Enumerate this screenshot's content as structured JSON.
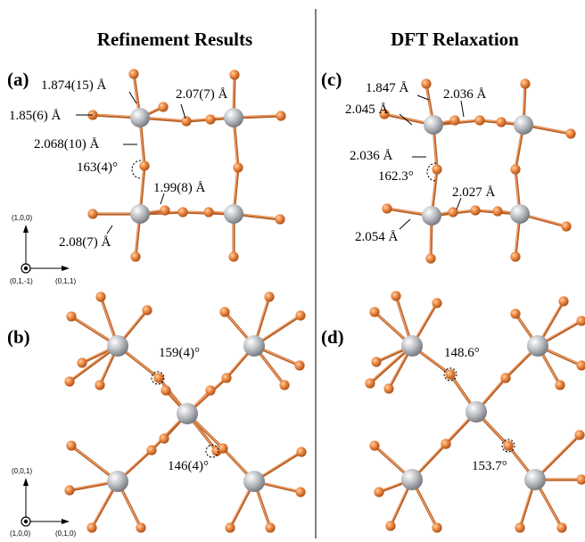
{
  "titles": {
    "left": "Refinement Results",
    "right": "DFT Relaxation"
  },
  "panels": {
    "a": {
      "label": "(a)",
      "annotations": [
        "1.874(15) Å",
        "2.07(7) Å",
        "1.85(6) Å",
        "2.068(10) Å",
        "163(4)°",
        "1.99(8) Å",
        "2.08(7) Å"
      ]
    },
    "b": {
      "label": "(b)",
      "annotations": [
        "159(4)°",
        "146(4)°"
      ]
    },
    "c": {
      "label": "(c)",
      "annotations": [
        "1.847 Å",
        "2.036 Å",
        "2.045 Å",
        "2.036 Å",
        "162.3°",
        "2.027 Å",
        "2.054 Å"
      ]
    },
    "d": {
      "label": "(d)",
      "annotations": [
        "148.6°",
        "153.7°"
      ]
    }
  },
  "axes": {
    "top": {
      "up": "(1,0,0)",
      "origin": "(0,1,-1)",
      "right": "(0,1,1)"
    },
    "bottom": {
      "up": "(0,0,1)",
      "origin": "(1,0,0)",
      "right": "(0,1,0)"
    }
  },
  "colors": {
    "oxygen": "#e8803a",
    "metal": "#a9acb0",
    "bond": "#b8612a"
  }
}
